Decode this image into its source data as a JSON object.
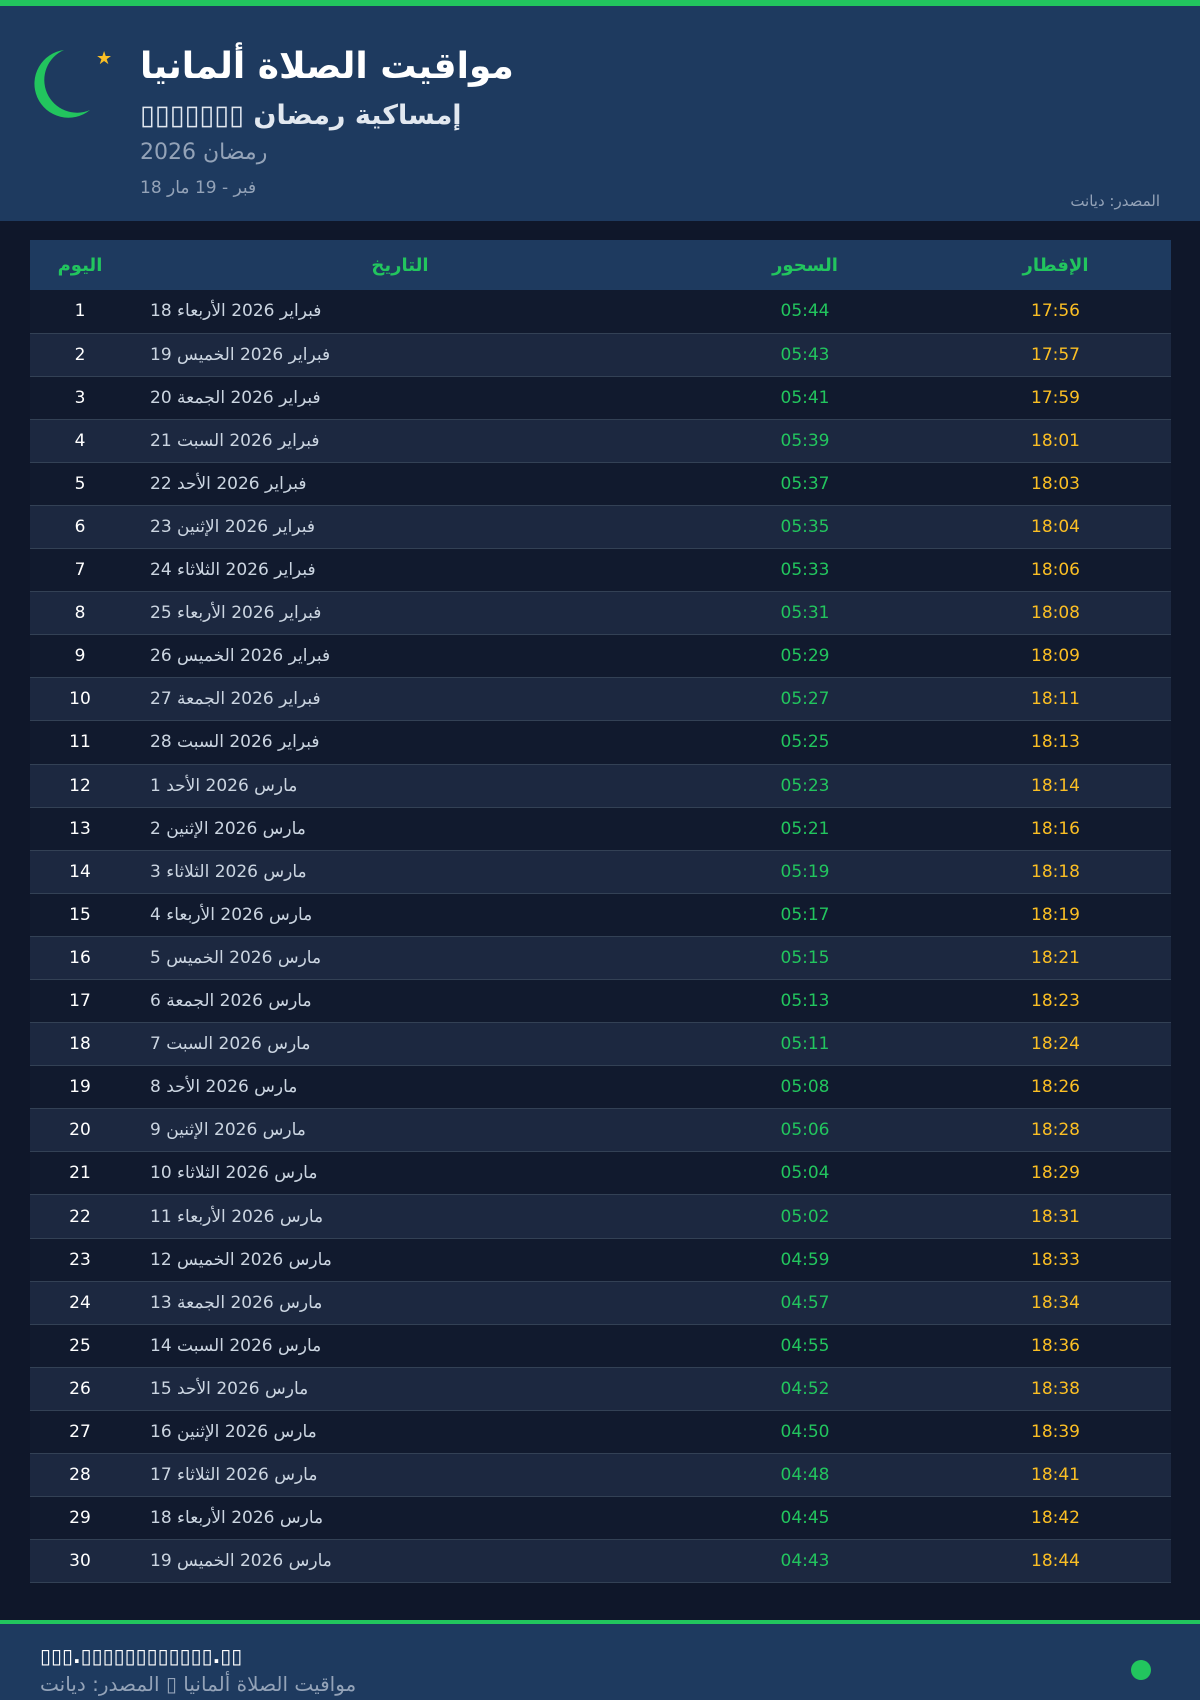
{
  "header": {
    "title": "مواقيت الصلاة ألمانيا",
    "subtitle": "▯▯▯▯▯▯▯ إمساكية رمضان",
    "year": "رمضان 2026",
    "range": "18 فبر - 19 مار",
    "source": "المصدر: ديانت",
    "icon": "crescent-moon-icon",
    "star_icon": "star-icon"
  },
  "table": {
    "headers": [
      "اليوم",
      "التاريخ",
      "السحور",
      "الإفطار"
    ],
    "rows": [
      [
        "1",
        "18 فبراير 2026 الأربعاء",
        "05:44",
        "17:56"
      ],
      [
        "2",
        "19 فبراير 2026 الخميس",
        "05:43",
        "17:57"
      ],
      [
        "3",
        "20 فبراير 2026 الجمعة",
        "05:41",
        "17:59"
      ],
      [
        "4",
        "21 فبراير 2026 السبت",
        "05:39",
        "18:01"
      ],
      [
        "5",
        "22 فبراير 2026 الأحد",
        "05:37",
        "18:03"
      ],
      [
        "6",
        "23 فبراير 2026 الإثنين",
        "05:35",
        "18:04"
      ],
      [
        "7",
        "24 فبراير 2026 الثلاثاء",
        "05:33",
        "18:06"
      ],
      [
        "8",
        "25 فبراير 2026 الأربعاء",
        "05:31",
        "18:08"
      ],
      [
        "9",
        "26 فبراير 2026 الخميس",
        "05:29",
        "18:09"
      ],
      [
        "10",
        "27 فبراير 2026 الجمعة",
        "05:27",
        "18:11"
      ],
      [
        "11",
        "28 فبراير 2026 السبت",
        "05:25",
        "18:13"
      ],
      [
        "12",
        "1 مارس 2026 الأحد",
        "05:23",
        "18:14"
      ],
      [
        "13",
        "2 مارس 2026 الإثنين",
        "05:21",
        "18:16"
      ],
      [
        "14",
        "3 مارس 2026 الثلاثاء",
        "05:19",
        "18:18"
      ],
      [
        "15",
        "4 مارس 2026 الأربعاء",
        "05:17",
        "18:19"
      ],
      [
        "16",
        "5 مارس 2026 الخميس",
        "05:15",
        "18:21"
      ],
      [
        "17",
        "6 مارس 2026 الجمعة",
        "05:13",
        "18:23"
      ],
      [
        "18",
        "7 مارس 2026 السبت",
        "05:11",
        "18:24"
      ],
      [
        "19",
        "8 مارس 2026 الأحد",
        "05:08",
        "18:26"
      ],
      [
        "20",
        "9 مارس 2026 الإثنين",
        "05:06",
        "18:28"
      ],
      [
        "21",
        "10 مارس 2026 الثلاثاء",
        "05:04",
        "18:29"
      ],
      [
        "22",
        "11 مارس 2026 الأربعاء",
        "05:02",
        "18:31"
      ],
      [
        "23",
        "12 مارس 2026 الخميس",
        "04:59",
        "18:33"
      ],
      [
        "24",
        "13 مارس 2026 الجمعة",
        "04:57",
        "18:34"
      ],
      [
        "25",
        "14 مارس 2026 السبت",
        "04:55",
        "18:36"
      ],
      [
        "26",
        "15 مارس 2026 الأحد",
        "04:52",
        "18:38"
      ],
      [
        "27",
        "16 مارس 2026 الإثنين",
        "04:50",
        "18:39"
      ],
      [
        "28",
        "17 مارس 2026 الثلاثاء",
        "04:48",
        "18:41"
      ],
      [
        "29",
        "18 مارس 2026 الأربعاء",
        "04:45",
        "18:42"
      ],
      [
        "30",
        "19 مارس 2026 الخميس",
        "04:43",
        "18:44"
      ]
    ]
  },
  "footer": {
    "site": "▯▯▯.▯▯▯▯▯▯▯▯▯▯▯▯.▯▯",
    "line": "مواقيت الصلاة ألمانيا ▯ المصدر: ديانت",
    "status_dot": "#22c55e"
  },
  "colors": {
    "accent": "#22c55e",
    "iftar": "#fbbf24",
    "header_bg": "#1e3a5f"
  }
}
